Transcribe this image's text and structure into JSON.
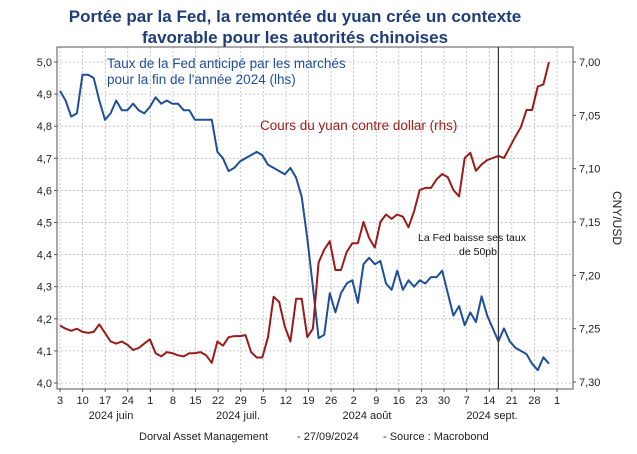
{
  "title_line1": "Portée par la Fed, la remontée du yuan crée un contexte",
  "title_line2": "favorable pour les autorités chinoises",
  "chart_data": {
    "type": "line",
    "x_ticks": [
      "3",
      "10",
      "17",
      "24",
      "1",
      "8",
      "15",
      "22",
      "29",
      "5",
      "12",
      "19",
      "26",
      "2",
      "9",
      "16",
      "23",
      "30",
      "7",
      "14",
      "21",
      "28",
      "1"
    ],
    "month_labels": [
      "2024 juin",
      "2024 juil.",
      "2024 août",
      "2024 sept."
    ],
    "left_axis": {
      "ticks": [
        "5,0",
        "4,9",
        "4,8",
        "4,7",
        "4,6",
        "4,5",
        "4,4",
        "4,3",
        "4,2",
        "4,1",
        "4,0"
      ],
      "ylim": [
        4.0,
        5.0
      ]
    },
    "right_axis": {
      "label": "CNY/USD",
      "ticks": [
        "7,00",
        "7,05",
        "7,10",
        "7,15",
        "7,20",
        "7,25",
        "7,30"
      ],
      "ylim": [
        7.3,
        6.99
      ],
      "inverted": true
    },
    "series": [
      {
        "name": "Taux de la Fed anticipé par les marchés pour la fin de l'année 2024 (lhs)",
        "axis": "left",
        "color": "#1f4e9c",
        "values": [
          [
            0,
            4.91
          ],
          [
            1,
            4.88
          ],
          [
            2,
            4.83
          ],
          [
            3,
            4.84
          ],
          [
            4,
            4.96
          ],
          [
            5,
            4.96
          ],
          [
            6,
            4.95
          ],
          [
            7,
            4.88
          ],
          [
            8,
            4.82
          ],
          [
            9,
            4.84
          ],
          [
            10,
            4.88
          ],
          [
            11,
            4.85
          ],
          [
            12,
            4.85
          ],
          [
            13,
            4.87
          ],
          [
            14,
            4.85
          ],
          [
            15,
            4.84
          ],
          [
            16,
            4.86
          ],
          [
            17,
            4.89
          ],
          [
            18,
            4.87
          ],
          [
            19,
            4.88
          ],
          [
            20,
            4.87
          ],
          [
            21,
            4.87
          ],
          [
            22,
            4.85
          ],
          [
            23,
            4.85
          ],
          [
            24,
            4.82
          ],
          [
            25,
            4.82
          ],
          [
            26,
            4.82
          ],
          [
            27,
            4.82
          ],
          [
            28,
            4.72
          ],
          [
            29,
            4.7
          ],
          [
            30,
            4.66
          ],
          [
            31,
            4.67
          ],
          [
            32,
            4.69
          ],
          [
            33,
            4.7
          ],
          [
            34,
            4.71
          ],
          [
            35,
            4.72
          ],
          [
            36,
            4.71
          ],
          [
            37,
            4.68
          ],
          [
            38,
            4.67
          ],
          [
            39,
            4.66
          ],
          [
            40,
            4.65
          ],
          [
            41,
            4.67
          ],
          [
            42,
            4.64
          ],
          [
            43,
            4.58
          ],
          [
            44,
            4.45
          ],
          [
            45,
            4.3
          ],
          [
            46,
            4.14
          ],
          [
            47,
            4.15
          ],
          [
            48,
            4.28
          ],
          [
            49,
            4.22
          ],
          [
            50,
            4.28
          ],
          [
            51,
            4.31
          ],
          [
            52,
            4.32
          ],
          [
            53,
            4.25
          ],
          [
            54,
            4.37
          ],
          [
            55,
            4.39
          ],
          [
            56,
            4.37
          ],
          [
            57,
            4.38
          ],
          [
            58,
            4.31
          ],
          [
            59,
            4.29
          ],
          [
            60,
            4.35
          ],
          [
            61,
            4.29
          ],
          [
            62,
            4.32
          ],
          [
            63,
            4.3
          ],
          [
            64,
            4.32
          ],
          [
            65,
            4.31
          ],
          [
            66,
            4.33
          ],
          [
            67,
            4.33
          ],
          [
            68,
            4.35
          ],
          [
            69,
            4.28
          ],
          [
            70,
            4.21
          ],
          [
            71,
            4.24
          ],
          [
            72,
            4.18
          ],
          [
            73,
            4.22
          ],
          [
            74,
            4.19
          ],
          [
            75,
            4.27
          ],
          [
            76,
            4.21
          ],
          [
            77,
            4.17
          ],
          [
            78,
            4.13
          ],
          [
            79,
            4.17
          ],
          [
            80,
            4.13
          ],
          [
            81,
            4.11
          ],
          [
            82,
            4.1
          ],
          [
            83,
            4.09
          ],
          [
            84,
            4.06
          ],
          [
            85,
            4.04
          ],
          [
            86,
            4.08
          ],
          [
            87,
            4.06
          ]
        ]
      },
      {
        "name": "Cours du yuan contre dollar (rhs)",
        "axis": "right",
        "color": "#9b1b1b",
        "values": [
          [
            0,
            7.247
          ],
          [
            1,
            7.25
          ],
          [
            2,
            7.252
          ],
          [
            3,
            7.25
          ],
          [
            4,
            7.253
          ],
          [
            5,
            7.254
          ],
          [
            6,
            7.253
          ],
          [
            7,
            7.246
          ],
          [
            8,
            7.254
          ],
          [
            9,
            7.262
          ],
          [
            10,
            7.264
          ],
          [
            11,
            7.262
          ],
          [
            12,
            7.265
          ],
          [
            13,
            7.27
          ],
          [
            14,
            7.268
          ],
          [
            15,
            7.264
          ],
          [
            16,
            7.26
          ],
          [
            17,
            7.273
          ],
          [
            18,
            7.276
          ],
          [
            19,
            7.272
          ],
          [
            20,
            7.273
          ],
          [
            21,
            7.275
          ],
          [
            22,
            7.276
          ],
          [
            23,
            7.273
          ],
          [
            24,
            7.273
          ],
          [
            25,
            7.272
          ],
          [
            26,
            7.275
          ],
          [
            27,
            7.282
          ],
          [
            28,
            7.262
          ],
          [
            29,
            7.266
          ],
          [
            30,
            7.258
          ],
          [
            31,
            7.257
          ],
          [
            32,
            7.257
          ],
          [
            33,
            7.256
          ],
          [
            34,
            7.272
          ],
          [
            35,
            7.277
          ],
          [
            36,
            7.277
          ],
          [
            37,
            7.258
          ],
          [
            38,
            7.22
          ],
          [
            39,
            7.225
          ],
          [
            40,
            7.248
          ],
          [
            41,
            7.262
          ],
          [
            42,
            7.222
          ],
          [
            43,
            7.222
          ],
          [
            44,
            7.258
          ],
          [
            45,
            7.25
          ],
          [
            46,
            7.188
          ],
          [
            47,
            7.176
          ],
          [
            48,
            7.168
          ],
          [
            49,
            7.195
          ],
          [
            50,
            7.195
          ],
          [
            51,
            7.178
          ],
          [
            52,
            7.17
          ],
          [
            53,
            7.17
          ],
          [
            54,
            7.15
          ],
          [
            55,
            7.165
          ],
          [
            56,
            7.174
          ],
          [
            57,
            7.15
          ],
          [
            58,
            7.143
          ],
          [
            59,
            7.147
          ],
          [
            60,
            7.143
          ],
          [
            61,
            7.145
          ],
          [
            62,
            7.155
          ],
          [
            63,
            7.14
          ],
          [
            64,
            7.12
          ],
          [
            65,
            7.118
          ],
          [
            66,
            7.118
          ],
          [
            67,
            7.11
          ],
          [
            68,
            7.105
          ],
          [
            69,
            7.108
          ],
          [
            70,
            7.12
          ],
          [
            71,
            7.126
          ],
          [
            72,
            7.09
          ],
          [
            73,
            7.085
          ],
          [
            74,
            7.102
          ],
          [
            75,
            7.096
          ],
          [
            76,
            7.092
          ],
          [
            77,
            7.09
          ],
          [
            78,
            7.088
          ],
          [
            79,
            7.09
          ],
          [
            80,
            7.08
          ],
          [
            81,
            7.07
          ],
          [
            82,
            7.061
          ],
          [
            83,
            7.045
          ],
          [
            84,
            7.045
          ],
          [
            85,
            7.023
          ],
          [
            86,
            7.021
          ],
          [
            87,
            7.0
          ]
        ]
      }
    ],
    "x_count": 88,
    "annotations": [
      {
        "text_line1": "La Fed baisse ses taux",
        "text_line2": "de 50pb",
        "at_x": 78
      }
    ]
  },
  "labels": {
    "fed_line1": "Taux de la Fed anticipé par les marchés",
    "fed_line2": "pour la fin de l'année 2024 (lhs)",
    "yuan": "Cours du yuan contre dollar (rhs)",
    "right_axis_title": "CNY/USD"
  },
  "footer": {
    "source_org": "Dorval Asset Management",
    "date": "- 27/09/2024",
    "source": "- Source : Macrobond"
  },
  "colors": {
    "title": "#1f3d7a",
    "fed": "#1f4e9c",
    "yuan": "#9b1b1b",
    "grid": "#b8b8b8"
  }
}
